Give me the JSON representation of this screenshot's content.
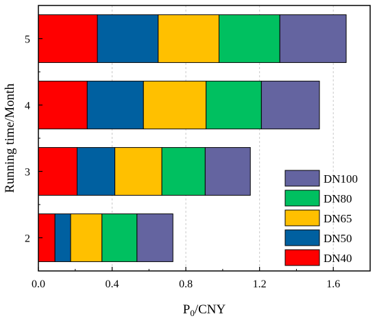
{
  "chart_data": {
    "type": "bar",
    "orientation": "horizontal",
    "stacked": true,
    "title": "",
    "xlabel_main": "P",
    "xlabel_sub": "0",
    "xlabel_rest": "/CNY",
    "ylabel": "Running time/Month",
    "categories": [
      "2",
      "3",
      "4",
      "5"
    ],
    "xlim": [
      0,
      1.8
    ],
    "x_ticks": [
      0.0,
      0.4,
      0.8,
      1.2,
      1.6
    ],
    "x_tick_labels": [
      "0.0",
      "0.4",
      "0.8",
      "1.2",
      "1.6"
    ],
    "grid": "vertical dashed",
    "legend_position": "bottom-right",
    "legend_order": [
      "DN100",
      "DN80",
      "DN65",
      "DN50",
      "DN40"
    ],
    "series": [
      {
        "name": "DN40",
        "color": "#ff0000",
        "values": [
          0.09,
          0.21,
          0.265,
          0.32
        ]
      },
      {
        "name": "DN50",
        "color": "#0060a0",
        "values": [
          0.085,
          0.205,
          0.305,
          0.33
        ]
      },
      {
        "name": "DN65",
        "color": "#ffc000",
        "values": [
          0.17,
          0.255,
          0.34,
          0.33
        ]
      },
      {
        "name": "DN80",
        "color": "#00c060",
        "values": [
          0.19,
          0.235,
          0.3,
          0.33
        ]
      },
      {
        "name": "DN100",
        "color": "#6464a0",
        "values": [
          0.195,
          0.245,
          0.315,
          0.36
        ]
      }
    ]
  }
}
